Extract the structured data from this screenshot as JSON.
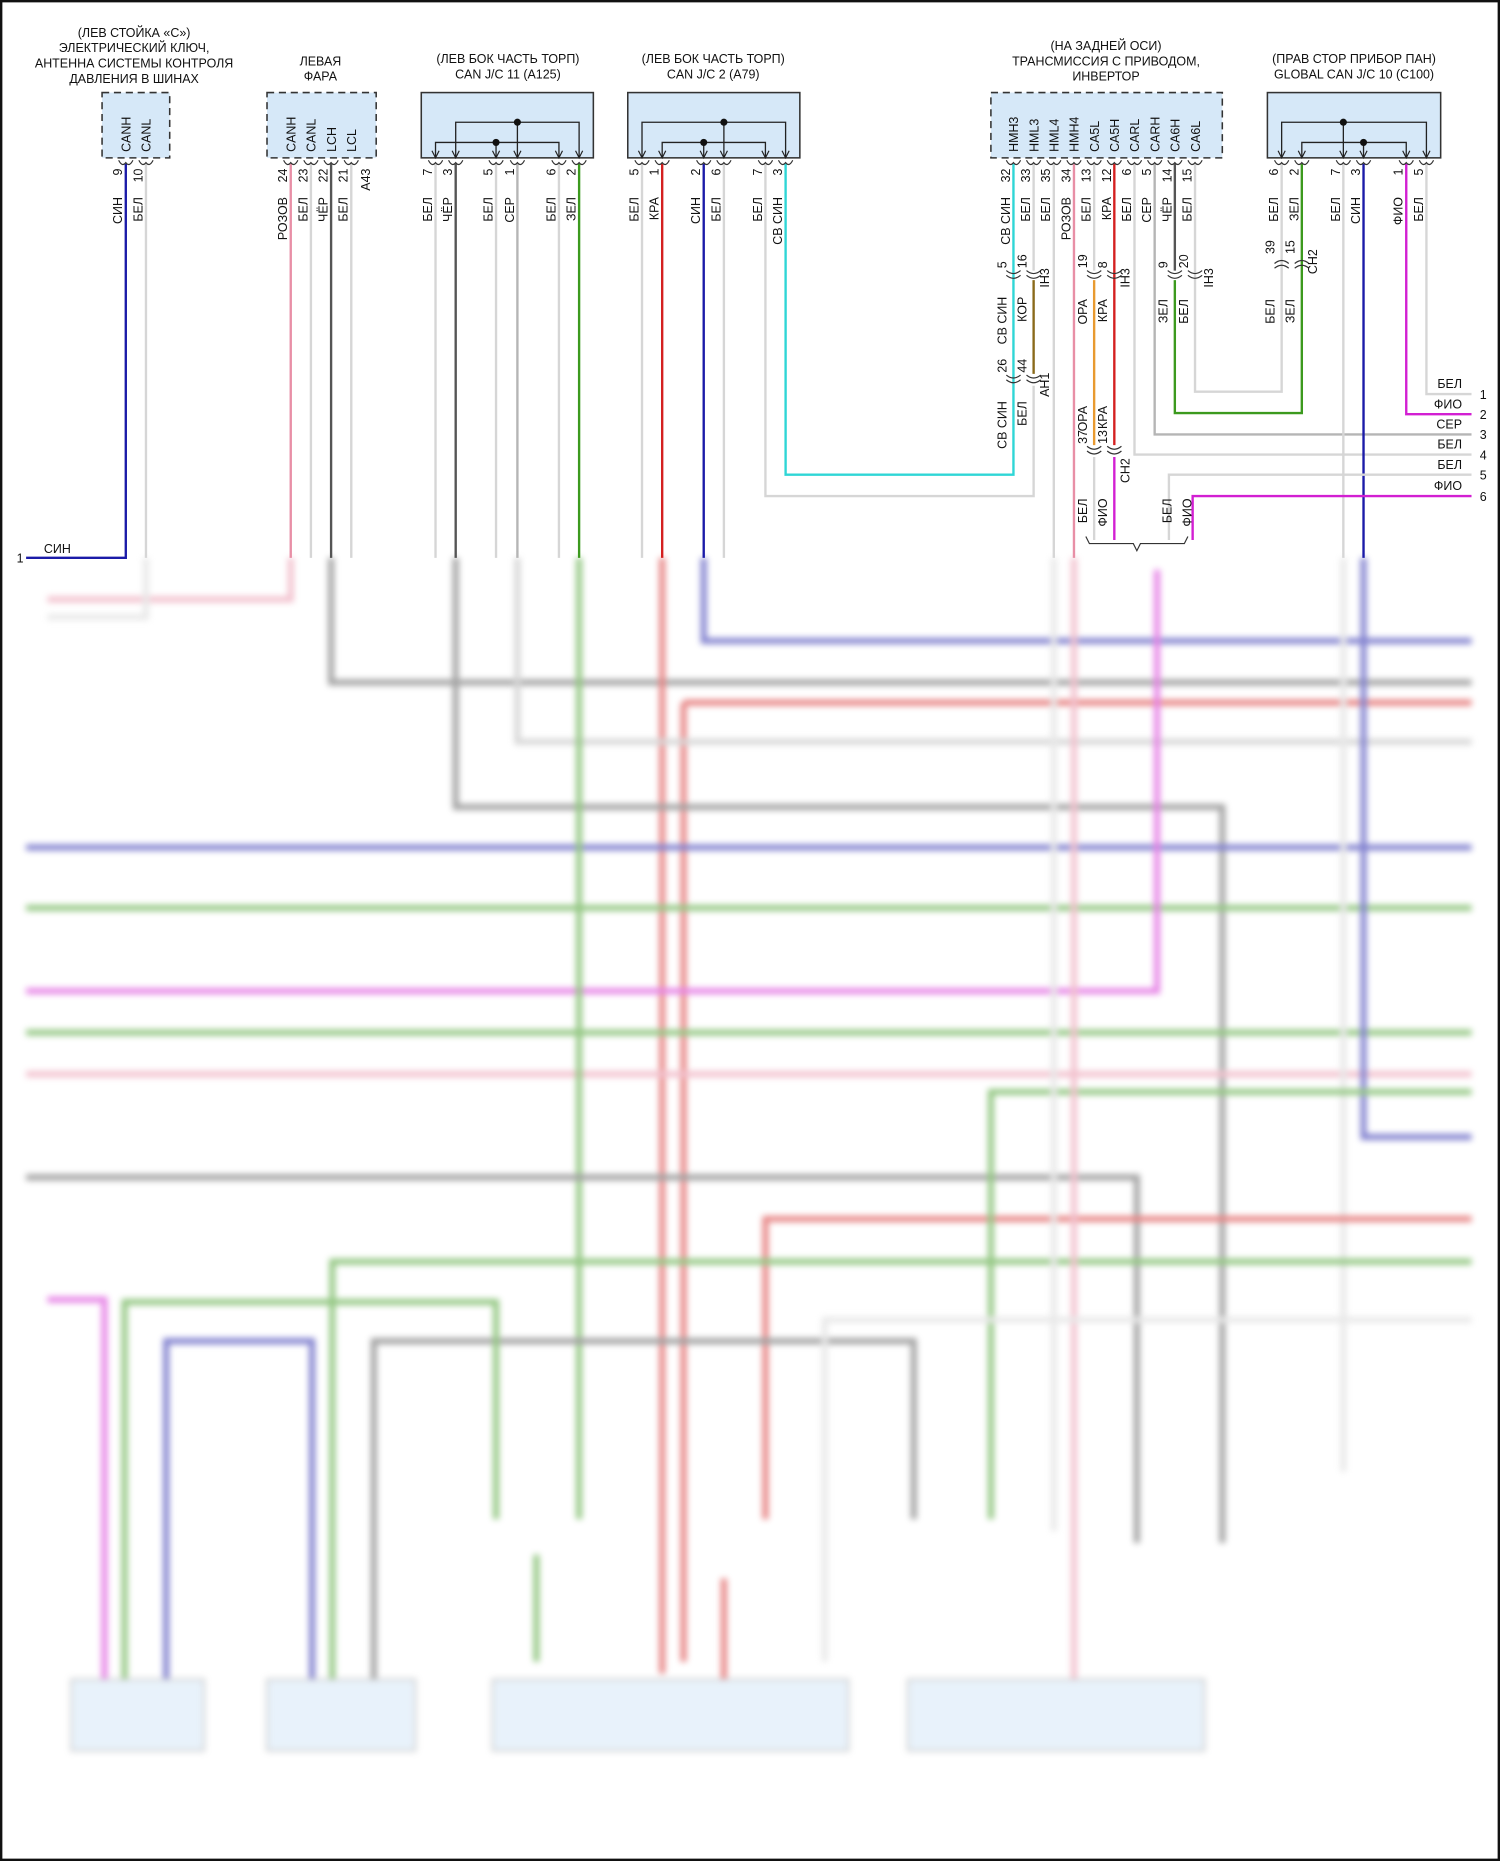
{
  "colors": {
    "СИН": "#1b1ba8",
    "БЕЛ": "#d6d6d6",
    "РОЗОВ": "#e88fa6",
    "ЧЁР": "#555555",
    "СЕР": "#b5b5b5",
    "ЗЕЛ": "#3c9a1e",
    "КРА": "#d42020",
    "СВ СИН": "#2fd6d6",
    "КОР": "#8a6a1a",
    "ОРА": "#e89a30",
    "ФИО": "#d21fd2",
    "box_fill": "#d6e8f8"
  },
  "connectors": [
    {
      "title": [
        "(ЛЕВ СТОЙКА «С»)",
        "ЭЛЕКТРИЧЕСКИЙ КЛЮЧ,",
        "АНТЕННА СИСТЕМЫ КОНТРОЛЯ",
        "ДАВЛЕНИЯ В ШИНАХ"
      ],
      "style": "dashed",
      "pins": [
        {
          "name": "CANH",
          "num": "9",
          "wire": "СИН"
        },
        {
          "name": "CANL",
          "num": "10",
          "wire": "БЕЛ"
        }
      ]
    },
    {
      "title": [
        "ЛЕВАЯ",
        "ФАРА"
      ],
      "style": "dashed",
      "extra_label": "A43",
      "pins": [
        {
          "name": "CANH",
          "num": "24",
          "wire": "РОЗОВ"
        },
        {
          "name": "CANL",
          "num": "23",
          "wire": "БЕЛ"
        },
        {
          "name": "LCH",
          "num": "22",
          "wire": "ЧЁР"
        },
        {
          "name": "LCL",
          "num": "21",
          "wire": "БЕЛ"
        }
      ]
    },
    {
      "title": [
        "(ЛЕВ БОК ЧАСТЬ ТОРП)",
        "CAN J/C 11 (A125)"
      ],
      "style": "solid",
      "pins": [
        {
          "name": "",
          "num": "7",
          "wire": "БЕЛ"
        },
        {
          "name": "",
          "num": "3",
          "wire": "ЧЁР"
        },
        {
          "name": "",
          "num": "5",
          "wire": "БЕЛ"
        },
        {
          "name": "",
          "num": "1",
          "wire": "СЕР"
        },
        {
          "name": "",
          "num": "6",
          "wire": "БЕЛ"
        },
        {
          "name": "",
          "num": "2",
          "wire": "ЗЕЛ"
        }
      ]
    },
    {
      "title": [
        "(ЛЕВ БОК ЧАСТЬ ТОРП)",
        "CAN J/C 2 (A79)"
      ],
      "style": "solid",
      "pins": [
        {
          "name": "",
          "num": "5",
          "wire": "БЕЛ"
        },
        {
          "name": "",
          "num": "1",
          "wire": "КРА"
        },
        {
          "name": "",
          "num": "2",
          "wire": "СИН"
        },
        {
          "name": "",
          "num": "6",
          "wire": "БЕЛ"
        },
        {
          "name": "",
          "num": "7",
          "wire": "БЕЛ"
        },
        {
          "name": "",
          "num": "3",
          "wire": "СВ СИН"
        }
      ]
    },
    {
      "title": [
        "(НА ЗАДНЕЙ ОСИ)",
        "ТРАНСМИССИЯ С ПРИВОДОМ,",
        "ИНВЕРТОР"
      ],
      "style": "dashed",
      "pins": [
        {
          "name": "HMH3",
          "num": "32",
          "wire": "СВ СИН"
        },
        {
          "name": "HML3",
          "num": "33",
          "wire": "БЕЛ"
        },
        {
          "name": "HML4",
          "num": "35",
          "wire": "БЕЛ"
        },
        {
          "name": "HMH4",
          "num": "34",
          "wire": "РОЗОВ"
        },
        {
          "name": "CA5L",
          "num": "13",
          "wire": "БЕЛ"
        },
        {
          "name": "CA5H",
          "num": "12",
          "wire": "КРА"
        },
        {
          "name": "CARL",
          "num": "6",
          "wire": "БЕЛ"
        },
        {
          "name": "CARH",
          "num": "5",
          "wire": "СЕР"
        },
        {
          "name": "CA6H",
          "num": "14",
          "wire": "ЧЁР"
        },
        {
          "name": "CA6L",
          "num": "15",
          "wire": "БЕЛ"
        }
      ]
    },
    {
      "title": [
        "(ПРАВ СТОР ПРИБОР ПАН)",
        "GLOBAL CAN J/C 10 (C100)"
      ],
      "style": "solid",
      "pins": [
        {
          "name": "",
          "num": "6",
          "wire": "БЕЛ"
        },
        {
          "name": "",
          "num": "2",
          "wire": "ЗЕЛ"
        },
        {
          "name": "",
          "num": "7",
          "wire": "БЕЛ"
        },
        {
          "name": "",
          "num": "3",
          "wire": "СИН"
        },
        {
          "name": "",
          "num": "1",
          "wire": "ФИО"
        },
        {
          "name": "",
          "num": "5",
          "wire": "БЕЛ"
        }
      ]
    }
  ],
  "splice_labels": [
    "5",
    "16",
    "IH3",
    "19",
    "8",
    "IH3",
    "9",
    "20",
    "IH3",
    "26",
    "44",
    "AH1",
    "37",
    "13",
    "CH2",
    "39",
    "15",
    "CH2"
  ],
  "mid_wire_labels": [
    "СВ СИН",
    "КОР",
    "ОРА",
    "КРА",
    "ЗЕЛ",
    "БЕЛ",
    "СВ СИН",
    "БЕЛ",
    "ОРА",
    "КРА",
    "БЕЛ",
    "ФИО",
    "БЕЛ",
    "ФИО",
    "БЕЛ",
    "ЗЕЛ"
  ],
  "right_list": [
    {
      "label": "БЕЛ",
      "num": "1"
    },
    {
      "label": "ФИО",
      "num": "2"
    },
    {
      "label": "СЕР",
      "num": "3"
    },
    {
      "label": "БЕЛ",
      "num": "4"
    },
    {
      "label": "БЕЛ",
      "num": "5"
    },
    {
      "label": "ФИО",
      "num": "6"
    }
  ],
  "left_list": [
    {
      "label": "СИН",
      "num": "1"
    }
  ]
}
